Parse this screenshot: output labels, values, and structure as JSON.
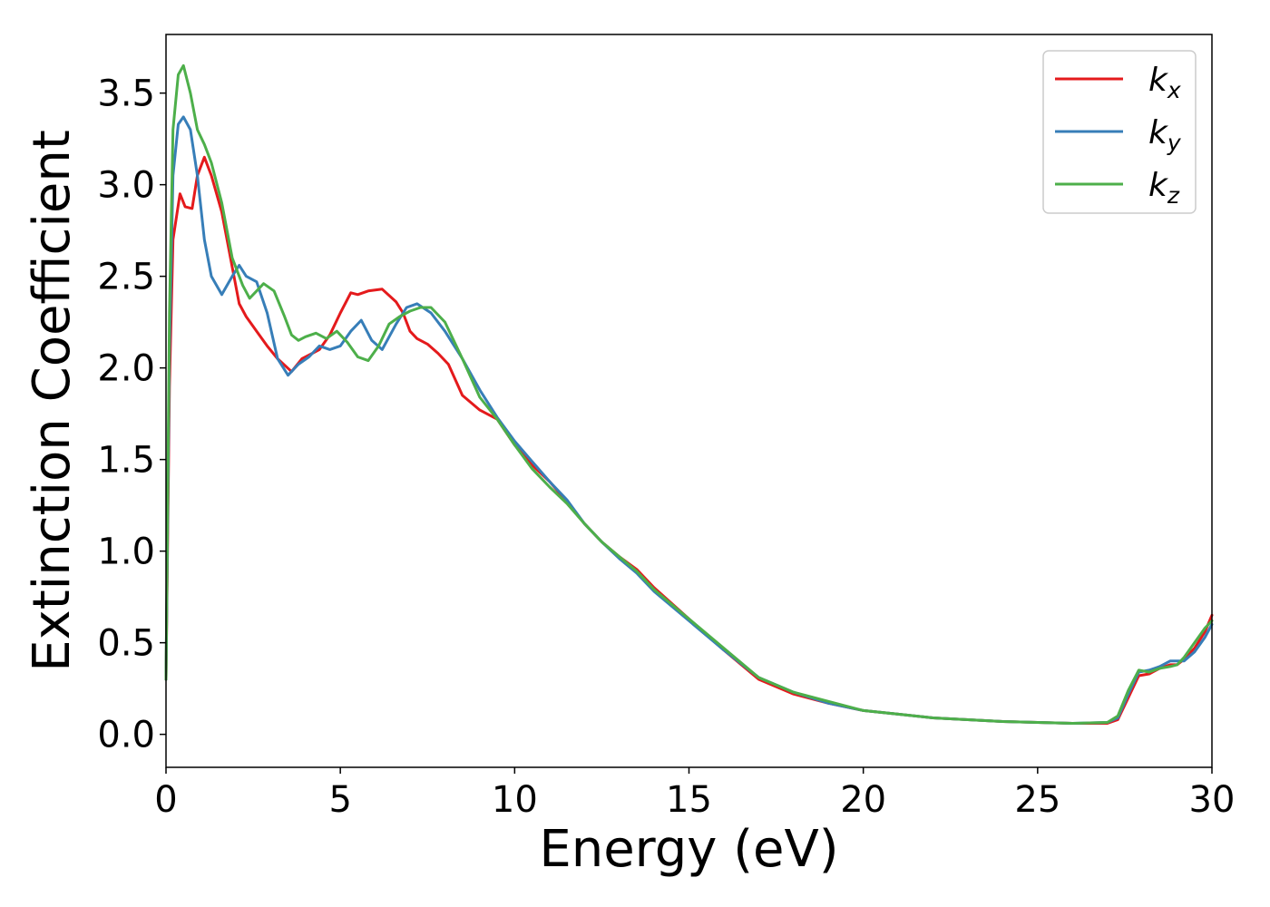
{
  "chart_data": {
    "type": "line",
    "xlabel": "Energy (eV)",
    "ylabel": "Extinction Coefficient",
    "xlim": [
      0,
      30
    ],
    "ylim": [
      -0.18,
      3.82
    ],
    "xticks": [
      "0",
      "5",
      "10",
      "15",
      "20",
      "25",
      "30"
    ],
    "yticks": [
      "0.0",
      "0.5",
      "1.0",
      "1.5",
      "2.0",
      "2.5",
      "3.0",
      "3.5"
    ],
    "grid": false,
    "legend_position": "top-right",
    "series": [
      {
        "name": "k",
        "subscript": "x",
        "color": "#e41a1c",
        "x": [
          0,
          0.1,
          0.2,
          0.4,
          0.55,
          0.75,
          0.9,
          1.1,
          1.3,
          1.6,
          1.9,
          2.1,
          2.3,
          2.6,
          2.9,
          3.2,
          3.6,
          3.9,
          4.1,
          4.4,
          4.7,
          5.0,
          5.3,
          5.5,
          5.8,
          6.2,
          6.6,
          6.8,
          7.0,
          7.2,
          7.5,
          7.8,
          8.1,
          8.5,
          9.0,
          9.5,
          10.0,
          10.5,
          11.0,
          11.5,
          12.0,
          12.5,
          13.0,
          13.5,
          14.0,
          15.0,
          16.0,
          17.0,
          18.0,
          19.0,
          20.0,
          21.0,
          22.0,
          23.0,
          24.0,
          25.0,
          26.0,
          27.0,
          27.3,
          27.6,
          27.9,
          28.2,
          28.5,
          28.8,
          29.0,
          29.2,
          29.5,
          29.8,
          30.0
        ],
        "y": [
          0.3,
          1.9,
          2.7,
          2.95,
          2.88,
          2.87,
          3.05,
          3.15,
          3.05,
          2.85,
          2.55,
          2.35,
          2.28,
          2.2,
          2.12,
          2.05,
          1.98,
          2.05,
          2.07,
          2.1,
          2.18,
          2.3,
          2.41,
          2.4,
          2.42,
          2.43,
          2.36,
          2.3,
          2.2,
          2.16,
          2.13,
          2.08,
          2.02,
          1.85,
          1.77,
          1.72,
          1.58,
          1.47,
          1.38,
          1.27,
          1.15,
          1.05,
          0.97,
          0.9,
          0.8,
          0.63,
          0.46,
          0.3,
          0.22,
          0.17,
          0.13,
          0.11,
          0.09,
          0.08,
          0.07,
          0.065,
          0.06,
          0.06,
          0.08,
          0.2,
          0.32,
          0.33,
          0.36,
          0.38,
          0.38,
          0.41,
          0.47,
          0.56,
          0.65
        ]
      },
      {
        "name": "k",
        "subscript": "y",
        "color": "#377eb8",
        "x": [
          0,
          0.1,
          0.2,
          0.35,
          0.5,
          0.7,
          0.9,
          1.1,
          1.3,
          1.6,
          1.9,
          2.1,
          2.3,
          2.6,
          2.9,
          3.2,
          3.5,
          3.8,
          4.1,
          4.4,
          4.7,
          5.0,
          5.3,
          5.6,
          5.9,
          6.2,
          6.6,
          6.9,
          7.2,
          7.6,
          8.0,
          8.5,
          9.0,
          9.5,
          10.0,
          10.5,
          11.0,
          11.5,
          12.0,
          12.5,
          13.0,
          13.5,
          14.0,
          15.0,
          16.0,
          17.0,
          18.0,
          19.0,
          20.0,
          21.0,
          22.0,
          23.0,
          24.0,
          25.0,
          26.0,
          27.0,
          27.3,
          27.6,
          27.9,
          28.2,
          28.5,
          28.8,
          29.0,
          29.2,
          29.5,
          29.8,
          30.0
        ],
        "y": [
          0.3,
          2.1,
          3.05,
          3.33,
          3.37,
          3.3,
          3.05,
          2.7,
          2.5,
          2.4,
          2.5,
          2.56,
          2.5,
          2.47,
          2.3,
          2.05,
          1.96,
          2.02,
          2.06,
          2.12,
          2.1,
          2.12,
          2.2,
          2.26,
          2.15,
          2.1,
          2.24,
          2.33,
          2.35,
          2.3,
          2.2,
          2.05,
          1.88,
          1.73,
          1.6,
          1.49,
          1.38,
          1.28,
          1.15,
          1.05,
          0.96,
          0.88,
          0.78,
          0.62,
          0.46,
          0.31,
          0.23,
          0.17,
          0.13,
          0.11,
          0.09,
          0.08,
          0.07,
          0.065,
          0.06,
          0.065,
          0.09,
          0.22,
          0.34,
          0.35,
          0.37,
          0.4,
          0.4,
          0.4,
          0.45,
          0.53,
          0.6
        ]
      },
      {
        "name": "k",
        "subscript": "z",
        "color": "#4daf4a",
        "x": [
          0,
          0.1,
          0.2,
          0.35,
          0.5,
          0.7,
          0.9,
          1.1,
          1.3,
          1.6,
          1.9,
          2.2,
          2.4,
          2.6,
          2.8,
          3.1,
          3.4,
          3.6,
          3.8,
          4.0,
          4.3,
          4.6,
          4.9,
          5.2,
          5.5,
          5.8,
          6.1,
          6.4,
          6.7,
          7.0,
          7.3,
          7.6,
          8.0,
          8.5,
          9.0,
          9.5,
          10.0,
          10.5,
          11.0,
          11.5,
          12.0,
          12.5,
          13.0,
          13.5,
          14.0,
          15.0,
          16.0,
          17.0,
          18.0,
          19.0,
          20.0,
          21.0,
          22.0,
          23.0,
          24.0,
          25.0,
          26.0,
          27.0,
          27.3,
          27.6,
          27.9,
          28.2,
          28.5,
          28.8,
          29.0,
          29.2,
          29.5,
          29.8,
          30.0
        ],
        "y": [
          0.3,
          2.3,
          3.3,
          3.6,
          3.65,
          3.5,
          3.3,
          3.22,
          3.12,
          2.9,
          2.6,
          2.45,
          2.38,
          2.42,
          2.46,
          2.42,
          2.28,
          2.18,
          2.15,
          2.17,
          2.19,
          2.16,
          2.2,
          2.14,
          2.06,
          2.04,
          2.12,
          2.24,
          2.28,
          2.31,
          2.33,
          2.33,
          2.25,
          2.05,
          1.84,
          1.72,
          1.58,
          1.45,
          1.35,
          1.26,
          1.15,
          1.05,
          0.97,
          0.89,
          0.79,
          0.63,
          0.47,
          0.31,
          0.23,
          0.18,
          0.13,
          0.11,
          0.09,
          0.08,
          0.07,
          0.065,
          0.06,
          0.065,
          0.1,
          0.24,
          0.35,
          0.34,
          0.36,
          0.37,
          0.38,
          0.42,
          0.5,
          0.58,
          0.62
        ]
      }
    ]
  }
}
